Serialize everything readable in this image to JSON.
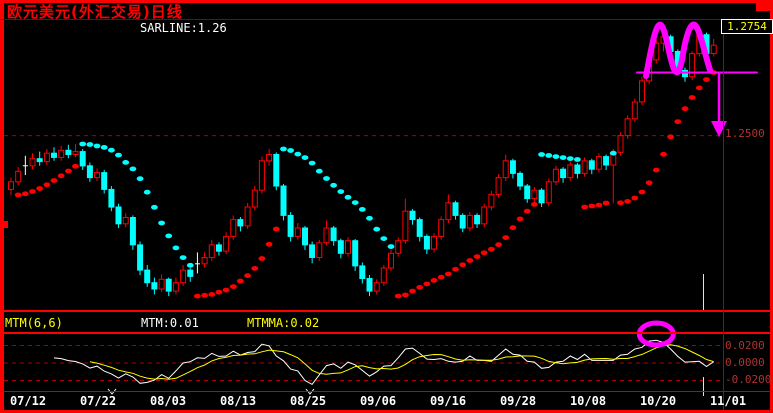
{
  "header": {
    "title": "欧元美元(外汇交易)日线"
  },
  "main_chart": {
    "sarline_label": "SARLINE:1.26",
    "high_label": "1.2754",
    "level_label": "1.2500"
  },
  "mtm_panel": {
    "name_label": "MTM(6,6)",
    "mtm_label": "MTM:0.01",
    "mtmma_label": "MTMMA:0.02",
    "axis_labels": [
      "0.0200",
      "0.0000",
      "-0.0200"
    ]
  },
  "colors": {
    "up": "#ff0000",
    "down": "#00ffff",
    "doji": "#ffffff",
    "mtm_line": "#ffffff",
    "mtmma_line": "#ffff00",
    "grid": "#aa0000",
    "annotation": "#ff00ff",
    "axis_text": "#b03333",
    "cursor": "#ffff00"
  },
  "chart_data": {
    "type": "candlestick",
    "title": "欧元美元(外汇交易)日线",
    "x_labels": [
      "07/12",
      "07/22",
      "08/03",
      "08/13",
      "08/25",
      "09/06",
      "09/16",
      "09/28",
      "10/08",
      "10/20",
      "11/01"
    ],
    "ylim": [
      1.2085,
      1.2775
    ],
    "price_levels": {
      "high": 1.2754,
      "support": 1.25
    },
    "overlay": {
      "name": "Parabolic SAR",
      "label": "SARLINE",
      "current_value": 1.26
    },
    "indicator": {
      "name": "MTM",
      "params": [
        6,
        6
      ],
      "mtm_current": 0.01,
      "mtmma_current": 0.02,
      "grid_levels": [
        0.02,
        0,
        -0.02
      ],
      "ylim": [
        -0.033,
        0.033
      ]
    },
    "doji_indices": [
      2,
      26
    ],
    "ohlc": [
      [
        1.2372,
        1.24,
        1.2358,
        1.239
      ],
      [
        1.239,
        1.2425,
        1.2382,
        1.2415
      ],
      [
        1.2428,
        1.2452,
        1.2406,
        1.2428
      ],
      [
        1.2428,
        1.2458,
        1.242,
        1.2445
      ],
      [
        1.2445,
        1.2462,
        1.2428,
        1.2438
      ],
      [
        1.2438,
        1.2468,
        1.243,
        1.2458
      ],
      [
        1.2458,
        1.2472,
        1.244,
        1.2448
      ],
      [
        1.2448,
        1.2476,
        1.244,
        1.2465
      ],
      [
        1.2465,
        1.2478,
        1.2446,
        1.2455
      ],
      [
        1.2455,
        1.248,
        1.2448,
        1.2462
      ],
      [
        1.2462,
        1.2468,
        1.2418,
        1.2428
      ],
      [
        1.2428,
        1.2436,
        1.239,
        1.24
      ],
      [
        1.24,
        1.2422,
        1.2392,
        1.2412
      ],
      [
        1.2412,
        1.2418,
        1.2362,
        1.2372
      ],
      [
        1.2372,
        1.238,
        1.232,
        1.233
      ],
      [
        1.233,
        1.2338,
        1.228,
        1.229
      ],
      [
        1.229,
        1.2315,
        1.2282,
        1.2305
      ],
      [
        1.2305,
        1.231,
        1.2228,
        1.224
      ],
      [
        1.224,
        1.2248,
        1.2168,
        1.218
      ],
      [
        1.218,
        1.2192,
        1.214,
        1.215
      ],
      [
        1.215,
        1.2162,
        1.2122,
        1.2135
      ],
      [
        1.2135,
        1.217,
        1.2128,
        1.2158
      ],
      [
        1.2158,
        1.2162,
        1.2118,
        1.213
      ],
      [
        1.213,
        1.2162,
        1.2122,
        1.215
      ],
      [
        1.215,
        1.2192,
        1.2142,
        1.218
      ],
      [
        1.218,
        1.2185,
        1.2152,
        1.2165
      ],
      [
        1.2195,
        1.2222,
        1.2172,
        1.2195
      ],
      [
        1.2195,
        1.2222,
        1.2186,
        1.221
      ],
      [
        1.221,
        1.2252,
        1.2202,
        1.224
      ],
      [
        1.224,
        1.2246,
        1.2215,
        1.2225
      ],
      [
        1.2225,
        1.227,
        1.2218,
        1.226
      ],
      [
        1.226,
        1.231,
        1.2252,
        1.23
      ],
      [
        1.23,
        1.2306,
        1.2272,
        1.2285
      ],
      [
        1.2285,
        1.234,
        1.2278,
        1.233
      ],
      [
        1.233,
        1.238,
        1.2322,
        1.237
      ],
      [
        1.237,
        1.245,
        1.2362,
        1.244
      ],
      [
        1.244,
        1.2468,
        1.2428,
        1.2455
      ],
      [
        1.2455,
        1.246,
        1.237,
        1.238
      ],
      [
        1.238,
        1.2385,
        1.2298,
        1.231
      ],
      [
        1.231,
        1.2318,
        1.2248,
        1.226
      ],
      [
        1.226,
        1.2292,
        1.2252,
        1.228
      ],
      [
        1.228,
        1.2285,
        1.2228,
        1.224
      ],
      [
        1.224,
        1.2248,
        1.2196,
        1.221
      ],
      [
        1.221,
        1.2252,
        1.2202,
        1.2245
      ],
      [
        1.2245,
        1.2298,
        1.2238,
        1.228
      ],
      [
        1.228,
        1.2285,
        1.2238,
        1.225
      ],
      [
        1.225,
        1.2255,
        1.2208,
        1.222
      ],
      [
        1.222,
        1.2258,
        1.2212,
        1.225
      ],
      [
        1.225,
        1.2254,
        1.2178,
        1.219
      ],
      [
        1.219,
        1.2198,
        1.2148,
        1.216
      ],
      [
        1.216,
        1.2168,
        1.2118,
        1.213
      ],
      [
        1.213,
        1.2158,
        1.2122,
        1.215
      ],
      [
        1.215,
        1.2192,
        1.2142,
        1.2185
      ],
      [
        1.2185,
        1.2228,
        1.2178,
        1.222
      ],
      [
        1.222,
        1.2258,
        1.2212,
        1.225
      ],
      [
        1.225,
        1.235,
        1.2242,
        1.232
      ],
      [
        1.232,
        1.2325,
        1.2288,
        1.23
      ],
      [
        1.23,
        1.2305,
        1.2248,
        1.226
      ],
      [
        1.226,
        1.2265,
        1.2218,
        1.223
      ],
      [
        1.223,
        1.2268,
        1.2222,
        1.226
      ],
      [
        1.226,
        1.2308,
        1.2252,
        1.23
      ],
      [
        1.23,
        1.236,
        1.2292,
        1.234
      ],
      [
        1.234,
        1.2345,
        1.23,
        1.231
      ],
      [
        1.231,
        1.2315,
        1.227,
        1.228
      ],
      [
        1.228,
        1.2318,
        1.2272,
        1.231
      ],
      [
        1.231,
        1.2315,
        1.228,
        1.229
      ],
      [
        1.229,
        1.2338,
        1.2282,
        1.233
      ],
      [
        1.233,
        1.2368,
        1.2322,
        1.236
      ],
      [
        1.236,
        1.2408,
        1.2352,
        1.24
      ],
      [
        1.24,
        1.2455,
        1.2392,
        1.244
      ],
      [
        1.244,
        1.2445,
        1.2398,
        1.241
      ],
      [
        1.241,
        1.2415,
        1.237,
        1.238
      ],
      [
        1.238,
        1.2385,
        1.234,
        1.235
      ],
      [
        1.235,
        1.2378,
        1.2342,
        1.237
      ],
      [
        1.237,
        1.2375,
        1.233,
        1.234
      ],
      [
        1.234,
        1.2398,
        1.2332,
        1.239
      ],
      [
        1.239,
        1.2428,
        1.2382,
        1.242
      ],
      [
        1.242,
        1.2425,
        1.2388,
        1.24
      ],
      [
        1.24,
        1.2438,
        1.2392,
        1.243
      ],
      [
        1.243,
        1.2435,
        1.2398,
        1.241
      ],
      [
        1.241,
        1.2448,
        1.2402,
        1.244
      ],
      [
        1.244,
        1.2445,
        1.2408,
        1.242
      ],
      [
        1.242,
        1.2458,
        1.2412,
        1.245
      ],
      [
        1.245,
        1.2455,
        1.2418,
        1.243
      ],
      [
        1.243,
        1.2468,
        1.234,
        1.246
      ],
      [
        1.246,
        1.2508,
        1.2452,
        1.25
      ],
      [
        1.25,
        1.2548,
        1.2492,
        1.254
      ],
      [
        1.254,
        1.2588,
        1.2532,
        1.258
      ],
      [
        1.258,
        1.264,
        1.2572,
        1.263
      ],
      [
        1.263,
        1.269,
        1.2622,
        1.268
      ],
      [
        1.268,
        1.273,
        1.2672,
        1.272
      ],
      [
        1.272,
        1.2754,
        1.27,
        1.2735
      ],
      [
        1.2735,
        1.274,
        1.2688,
        1.27
      ],
      [
        1.27,
        1.2705,
        1.2645,
        1.2655
      ],
      [
        1.2655,
        1.2662,
        1.2628,
        1.264
      ],
      [
        1.264,
        1.27,
        1.2632,
        1.2695
      ],
      [
        1.2695,
        1.275,
        1.2688,
        1.274
      ],
      [
        1.274,
        1.2745,
        1.2685,
        1.2695
      ],
      [
        1.2695,
        1.273,
        1.2688,
        1.2715
      ]
    ],
    "annotations": {
      "double_top_marker": "M-shape over twin peaks",
      "neckline_price": 1.265,
      "arrow_target_price": 1.25,
      "mtm_peak_circle_index": 90
    }
  }
}
